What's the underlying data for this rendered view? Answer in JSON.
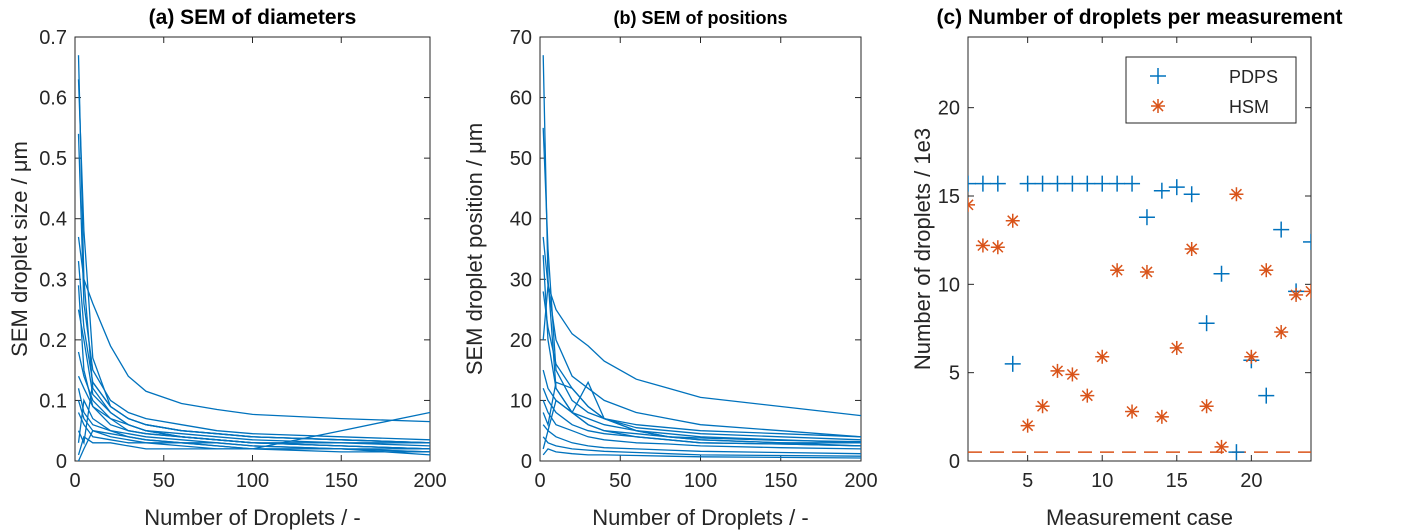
{
  "chart_data": [
    {
      "type": "line",
      "title": "(a) SEM of diameters",
      "xlabel": "Number of Droplets / -",
      "ylabel": "SEM droplet size / μm",
      "xlim": [
        0,
        200
      ],
      "ylim": [
        0,
        0.7
      ],
      "xticks": [
        0,
        50,
        100,
        150,
        200
      ],
      "yticks": [
        0,
        0.1,
        0.2,
        0.3,
        0.4,
        0.5,
        0.6,
        0.7
      ],
      "ytick_labels": [
        "0",
        "0.1",
        "0.2",
        "0.3",
        "0.4",
        "0.5",
        "0.6",
        "0.7"
      ],
      "color": "#0072BD",
      "x": [
        2,
        5,
        10,
        20,
        30,
        40,
        60,
        80,
        100,
        150,
        200
      ],
      "series": [
        {
          "values": [
            0.67,
            0.3,
            0.12,
            0.08,
            0.06,
            0.05,
            0.045,
            0.04,
            0.035,
            0.03,
            0.03
          ]
        },
        {
          "values": [
            0.63,
            0.38,
            0.17,
            0.09,
            0.07,
            0.06,
            0.05,
            0.045,
            0.04,
            0.035,
            0.03
          ]
        },
        {
          "values": [
            0.54,
            0.26,
            0.15,
            0.1,
            0.08,
            0.07,
            0.06,
            0.05,
            0.045,
            0.04,
            0.035
          ]
        },
        {
          "values": [
            0.37,
            0.3,
            0.26,
            0.19,
            0.14,
            0.115,
            0.095,
            0.085,
            0.077,
            0.07,
            0.065
          ]
        },
        {
          "values": [
            0.33,
            0.22,
            0.13,
            0.09,
            0.07,
            0.06,
            0.05,
            0.045,
            0.04,
            0.035,
            0.03
          ]
        },
        {
          "values": [
            0.29,
            0.15,
            0.09,
            0.07,
            0.05,
            0.045,
            0.04,
            0.035,
            0.03,
            0.025,
            0.02
          ]
        },
        {
          "values": [
            0.25,
            0.2,
            0.11,
            0.08,
            0.06,
            0.05,
            0.04,
            0.035,
            0.03,
            0.025,
            0.02
          ]
        },
        {
          "values": [
            0.18,
            0.14,
            0.1,
            0.07,
            0.06,
            0.05,
            0.04,
            0.035,
            0.03,
            0.03,
            0.025
          ]
        },
        {
          "values": [
            0.14,
            0.12,
            0.09,
            0.06,
            0.05,
            0.045,
            0.04,
            0.035,
            0.03,
            0.025,
            0.02
          ]
        },
        {
          "values": [
            0.12,
            0.08,
            0.06,
            0.05,
            0.04,
            0.035,
            0.03,
            0.03,
            0.025,
            0.02,
            0.02
          ]
        },
        {
          "values": [
            0.1,
            0.07,
            0.05,
            0.045,
            0.04,
            0.035,
            0.03,
            0.025,
            0.02,
            0.02,
            0.015
          ]
        },
        {
          "values": [
            0.08,
            0.06,
            0.04,
            0.035,
            0.03,
            0.03,
            0.025,
            0.02,
            0.02,
            0.015,
            0.015
          ]
        },
        {
          "values": [
            0.05,
            0.03,
            0.13,
            0.09,
            0.07,
            0.06,
            0.05,
            0.045,
            0.04,
            0.035,
            0.03
          ]
        },
        {
          "values": [
            0.0,
            0.02,
            0.05,
            0.04,
            0.035,
            0.03,
            0.03,
            0.025,
            0.02,
            0.02,
            0.015
          ]
        },
        {
          "values": [
            0.01,
            0.04,
            0.03,
            0.03,
            0.025,
            0.02,
            0.02,
            0.02,
            0.02,
            0.05,
            0.08
          ]
        },
        {
          "values": [
            0.03,
            0.1,
            0.07,
            0.05,
            0.045,
            0.04,
            0.035,
            0.03,
            0.025,
            0.02,
            0.01
          ]
        }
      ]
    },
    {
      "type": "line",
      "title": "(b) SEM of positions",
      "xlabel": "Number of Droplets / -",
      "ylabel": "SEM droplet position / μm",
      "xlim": [
        0,
        200
      ],
      "ylim": [
        0,
        70
      ],
      "xticks": [
        0,
        50,
        100,
        150,
        200
      ],
      "yticks": [
        0,
        10,
        20,
        30,
        40,
        50,
        60,
        70
      ],
      "color": "#0072BD",
      "x": [
        2,
        5,
        10,
        20,
        30,
        40,
        60,
        80,
        100,
        150,
        200
      ],
      "series": [
        {
          "values": [
            67,
            30,
            12,
            8,
            6,
            5,
            4.5,
            4,
            3.8,
            3.4,
            3.2
          ]
        },
        {
          "values": [
            55,
            35,
            15,
            10,
            8,
            7,
            6,
            5.5,
            5,
            4.5,
            4
          ]
        },
        {
          "values": [
            37,
            29,
            25,
            21,
            19,
            16.5,
            13.5,
            12,
            10.5,
            9,
            7.5
          ]
        },
        {
          "values": [
            34,
            20,
            12,
            8,
            6,
            5,
            4,
            3.5,
            3,
            2.8,
            2.5
          ]
        },
        {
          "values": [
            28,
            22,
            16,
            12,
            9,
            7,
            5,
            4,
            3.5,
            3,
            2.5
          ]
        },
        {
          "values": [
            20,
            29,
            20,
            14,
            12,
            10,
            8,
            7,
            6,
            5,
            4
          ]
        },
        {
          "values": [
            15,
            12,
            10,
            8,
            7,
            6,
            5,
            4.5,
            4,
            3.5,
            3
          ]
        },
        {
          "values": [
            12,
            10,
            8,
            6,
            5,
            4.5,
            4,
            3.5,
            3,
            2.8,
            2.5
          ]
        },
        {
          "values": [
            10,
            8,
            6,
            5,
            4,
            3.5,
            3,
            2.8,
            2.5,
            2.2,
            2
          ]
        },
        {
          "values": [
            8,
            6,
            13,
            12,
            9,
            7,
            5.5,
            5,
            4.5,
            4,
            3.5
          ]
        },
        {
          "values": [
            6,
            5,
            4,
            3,
            2.5,
            2.2,
            2,
            1.8,
            1.6,
            1.4,
            1.2
          ]
        },
        {
          "values": [
            4,
            3,
            2.5,
            2,
            1.8,
            1.6,
            1.4,
            1.2,
            1,
            0.9,
            0.8
          ]
        },
        {
          "values": [
            2,
            5,
            10,
            8,
            13,
            7,
            5,
            4,
            3.5,
            3,
            3
          ]
        },
        {
          "values": [
            1,
            2,
            1.5,
            1.2,
            1,
            1,
            0.9,
            0.8,
            0.7,
            0.6,
            0.5
          ]
        }
      ]
    },
    {
      "type": "scatter",
      "title": "(c) Number of droplets per measurement",
      "xlabel": "Measurement case",
      "ylabel": "Number of droplets / 1e3",
      "xlim": [
        1,
        24
      ],
      "ylim": [
        0,
        24
      ],
      "xticks": [
        5,
        10,
        15,
        20
      ],
      "yticks": [
        0,
        5,
        10,
        15,
        20
      ],
      "legend_position": "top-right",
      "threshold_line": {
        "y": 0.5,
        "color": "#D95319",
        "style": "dashed"
      },
      "series": [
        {
          "name": "PDPS",
          "marker": "+",
          "color": "#0072BD",
          "x": [
            1,
            2,
            3,
            4,
            5,
            6,
            7,
            8,
            9,
            10,
            11,
            12,
            13,
            14,
            15,
            16,
            17,
            18,
            19,
            20,
            21,
            22,
            23,
            24
          ],
          "y": [
            15.7,
            15.7,
            15.7,
            5.5,
            15.7,
            15.7,
            15.7,
            15.7,
            15.7,
            15.7,
            15.7,
            15.7,
            13.8,
            15.3,
            15.5,
            15.1,
            7.8,
            10.6,
            0.5,
            5.7,
            3.7,
            13.1,
            9.6,
            12.4
          ]
        },
        {
          "name": "HSM",
          "marker": "*",
          "color": "#D95319",
          "x": [
            1,
            2,
            3,
            4,
            5,
            6,
            7,
            8,
            9,
            10,
            11,
            12,
            13,
            14,
            15,
            16,
            17,
            18,
            19,
            20,
            21,
            22,
            23,
            24
          ],
          "y": [
            14.5,
            12.2,
            12.1,
            13.6,
            2.0,
            3.1,
            5.1,
            4.9,
            3.7,
            5.9,
            10.8,
            2.8,
            10.7,
            2.5,
            6.4,
            12.0,
            3.1,
            0.8,
            15.1,
            5.9,
            10.8,
            7.3,
            9.4,
            9.6
          ]
        }
      ]
    }
  ]
}
